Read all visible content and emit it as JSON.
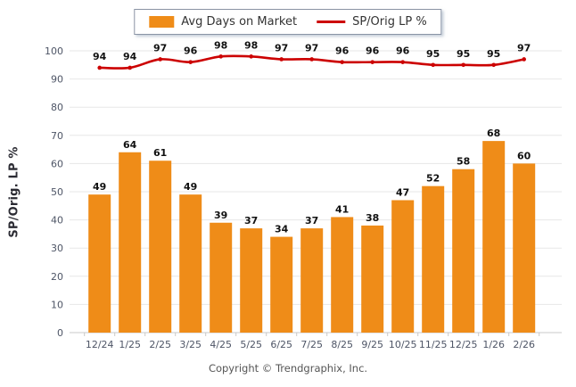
{
  "chart_data": {
    "type": "bar+line",
    "categories": [
      "12/24",
      "1/25",
      "2/25",
      "3/25",
      "4/25",
      "5/25",
      "6/25",
      "7/25",
      "8/25",
      "9/25",
      "10/25",
      "11/25",
      "12/25",
      "1/26",
      "2/26"
    ],
    "series": [
      {
        "name": "Avg Days on Market",
        "type": "bar",
        "color": "#EF8C18",
        "values": [
          49,
          64,
          61,
          49,
          39,
          37,
          34,
          37,
          41,
          38,
          47,
          52,
          58,
          68,
          60
        ]
      },
      {
        "name": "SP/Orig LP %",
        "type": "line",
        "color": "#CC0000",
        "values": [
          94,
          94,
          97,
          96,
          98,
          98,
          97,
          97,
          96,
          96,
          96,
          95,
          95,
          95,
          97
        ]
      }
    ],
    "ylabel": "SP/Orig. LP %",
    "xlabel": "",
    "ylim": [
      0,
      100
    ],
    "ytick_step": 10,
    "grid": true,
    "legend_position": "top-center",
    "data_labels": true,
    "footer": "Copyright © Trendgraphix, Inc.",
    "colors": {
      "bar": "#EF8C18",
      "line": "#CC0000",
      "gridline": "#e7e7e7",
      "axis": "#c9c9c9",
      "tick_text": "#4e5566",
      "data_label_text": "#111111"
    }
  }
}
